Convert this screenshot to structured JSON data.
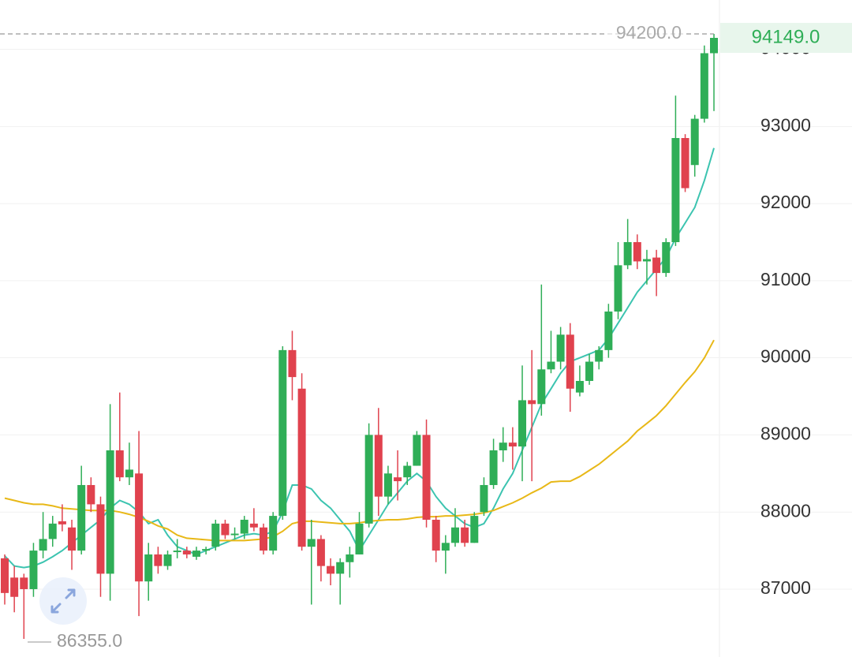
{
  "chart_data": {
    "type": "candlestick",
    "up_color": "#2fae57",
    "down_color": "#e0424e",
    "open": [
      87400,
      87150,
      87150,
      87000,
      87500,
      87650,
      87880,
      87800,
      87500,
      88350,
      88100,
      87200,
      88800,
      88450,
      88500,
      87100,
      87450,
      87300,
      87480,
      87500,
      87420,
      87500,
      87550,
      87850,
      87700,
      87720,
      87850,
      87800,
      87500,
      87950,
      90100,
      89600,
      87550,
      87650,
      87300,
      87200,
      87350,
      87450,
      87850,
      89000,
      88200,
      88450,
      88450,
      88600,
      89000,
      87900,
      87500,
      87600,
      87800,
      87600,
      88000,
      88350,
      88800,
      88900,
      88850,
      89450,
      89400,
      89850,
      89950,
      90300,
      89550,
      89700,
      89950,
      90100,
      90600,
      91200,
      91500,
      91250,
      91300,
      91100,
      91500,
      92850,
      92500,
      93100,
      93950
    ],
    "high": [
      87450,
      87300,
      87200,
      87600,
      88000,
      87950,
      88100,
      87900,
      88600,
      88450,
      88200,
      89400,
      89550,
      88900,
      89050,
      87600,
      87550,
      87500,
      87650,
      87550,
      87550,
      87550,
      87900,
      87900,
      87800,
      87950,
      88050,
      87850,
      88000,
      90150,
      90350,
      89800,
      87900,
      87700,
      87400,
      87400,
      87550,
      88000,
      89150,
      89350,
      88600,
      88800,
      88650,
      89050,
      89200,
      87950,
      87700,
      88050,
      87900,
      88000,
      88450,
      88950,
      89100,
      89100,
      89900,
      90100,
      90950,
      90350,
      90400,
      90450,
      89900,
      90050,
      90150,
      90700,
      91500,
      91800,
      91600,
      91400,
      91400,
      91550,
      93400,
      92900,
      93150,
      94050,
      94200
    ],
    "low": [
      86800,
      86700,
      86355,
      86900,
      87400,
      87550,
      87750,
      87250,
      87450,
      88000,
      86900,
      86850,
      88400,
      88350,
      86650,
      86850,
      87200,
      87250,
      87400,
      87400,
      87380,
      87450,
      87500,
      87650,
      87650,
      87650,
      87750,
      87450,
      87450,
      87900,
      89450,
      87500,
      86800,
      87100,
      87050,
      86800,
      87150,
      87450,
      87800,
      87950,
      88100,
      88150,
      88350,
      88600,
      87800,
      87350,
      87200,
      87550,
      87550,
      87600,
      87950,
      88300,
      88650,
      88550,
      88400,
      88400,
      89250,
      89800,
      89850,
      89300,
      89500,
      89650,
      89850,
      90000,
      90500,
      91150,
      91150,
      90950,
      90800,
      91050,
      91450,
      92150,
      92350,
      93050,
      93200
    ],
    "close": [
      86950,
      86900,
      87000,
      87500,
      87650,
      87850,
      87840,
      87500,
      88350,
      88100,
      87200,
      88800,
      88450,
      88550,
      87100,
      87450,
      87300,
      87450,
      87500,
      87450,
      87500,
      87520,
      87850,
      87700,
      87720,
      87900,
      87800,
      87500,
      87950,
      90100,
      89750,
      87550,
      87650,
      87300,
      87200,
      87350,
      87450,
      87850,
      89000,
      88200,
      88500,
      88400,
      88600,
      89000,
      87900,
      87500,
      87600,
      87800,
      87600,
      87950,
      88350,
      88800,
      88900,
      88850,
      89450,
      89400,
      89850,
      89950,
      90300,
      89600,
      89700,
      89950,
      90100,
      90600,
      91200,
      91500,
      91250,
      91280,
      91100,
      91500,
      92850,
      92200,
      93100,
      93950,
      94149
    ],
    "lines": [
      {
        "color": "#3cc4b0",
        "values": [
          87430,
          87300,
          87280,
          87300,
          87350,
          87420,
          87500,
          87600,
          87700,
          87800,
          87900,
          88050,
          88150,
          88100,
          88000,
          87850,
          87900,
          87700,
          87550,
          87500,
          87450,
          87500,
          87550,
          87600,
          87650,
          87700,
          87720,
          87700,
          87750,
          88000,
          88350,
          88350,
          88300,
          88150,
          88050,
          87900,
          87750,
          87500,
          87700,
          87900,
          88100,
          88250,
          88400,
          88500,
          88400,
          88200,
          88050,
          87950,
          87850,
          87800,
          87850,
          88050,
          88300,
          88500,
          88800,
          89100,
          89400,
          89600,
          89800,
          89950,
          90000,
          90050,
          90100,
          90250,
          90450,
          90650,
          90850,
          91000,
          91150,
          91300,
          91550,
          91750,
          91950,
          92300,
          92720
        ]
      },
      {
        "color": "#e8b817",
        "values": [
          88180,
          88150,
          88120,
          88100,
          88100,
          88080,
          88050,
          88040,
          88030,
          88020,
          88020,
          88020,
          88000,
          87970,
          87930,
          87880,
          87820,
          87780,
          87700,
          87660,
          87650,
          87640,
          87630,
          87630,
          87630,
          87630,
          87640,
          87650,
          87680,
          87750,
          87850,
          87880,
          87880,
          87870,
          87860,
          87850,
          87850,
          87860,
          87880,
          87890,
          87900,
          87900,
          87910,
          87930,
          87940,
          87940,
          87950,
          87950,
          87960,
          87970,
          87990,
          88020,
          88070,
          88120,
          88180,
          88250,
          88310,
          88390,
          88400,
          88400,
          88460,
          88540,
          88620,
          88720,
          88820,
          88920,
          89050,
          89150,
          89250,
          89380,
          89530,
          89680,
          89820,
          90000,
          90230
        ]
      }
    ],
    "ylim": [
      86120,
      94640
    ],
    "yticks": [
      87000,
      88000,
      89000,
      90000,
      91000,
      92000,
      93000,
      94000
    ],
    "grid": true,
    "max_label": {
      "value": 94200,
      "label": "94200.0"
    },
    "min_label": {
      "value": 86355,
      "label": "86355.0"
    },
    "last_price": {
      "value": 94149,
      "label": "94149.0"
    }
  }
}
